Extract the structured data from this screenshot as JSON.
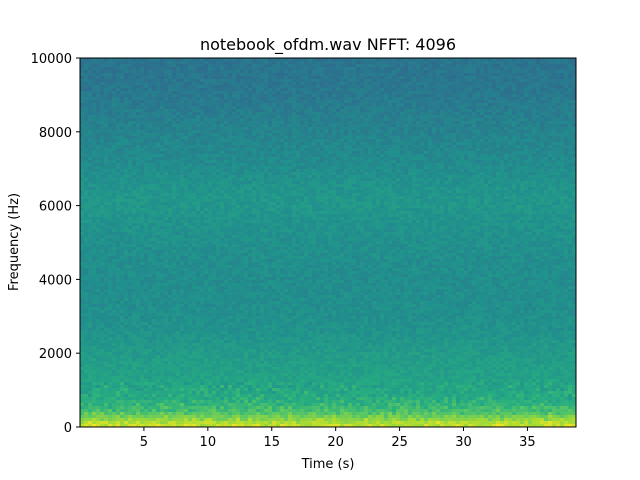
{
  "chart_data": {
    "type": "heatmap",
    "title": "notebook_ofdm.wav  NFFT: 4096",
    "xlabel": "Time (s)",
    "ylabel": "Frequency (Hz)",
    "xlim": [
      0,
      38.8
    ],
    "ylim": [
      0,
      10000
    ],
    "x_ticks": [
      5,
      10,
      15,
      20,
      25,
      30,
      35
    ],
    "x_tick_labels": [
      "5",
      "10",
      "15",
      "20",
      "25",
      "30",
      "35"
    ],
    "y_ticks": [
      0,
      2000,
      4000,
      6000,
      8000,
      10000
    ],
    "y_tick_labels": [
      "0",
      "2000",
      "4000",
      "6000",
      "8000",
      "10000"
    ],
    "colormap": "viridis",
    "grid": false,
    "legend": "none",
    "intensity_profile": {
      "frequency_hz": [
        0,
        100,
        200,
        300,
        400,
        600,
        800,
        1000,
        1500,
        2000,
        2500,
        3000,
        4000,
        5000,
        6000,
        6500,
        7000,
        8000,
        9000,
        10000
      ],
      "level": [
        0.93,
        0.9,
        0.84,
        0.78,
        0.72,
        0.66,
        0.62,
        0.6,
        0.57,
        0.55,
        0.52,
        0.5,
        0.49,
        0.5,
        0.53,
        0.52,
        0.49,
        0.45,
        0.41,
        0.39
      ]
    },
    "colors": {
      "low": "#2a788e",
      "mid": "#21a685",
      "high": "#bddf26",
      "peak": "#e2e418"
    }
  }
}
